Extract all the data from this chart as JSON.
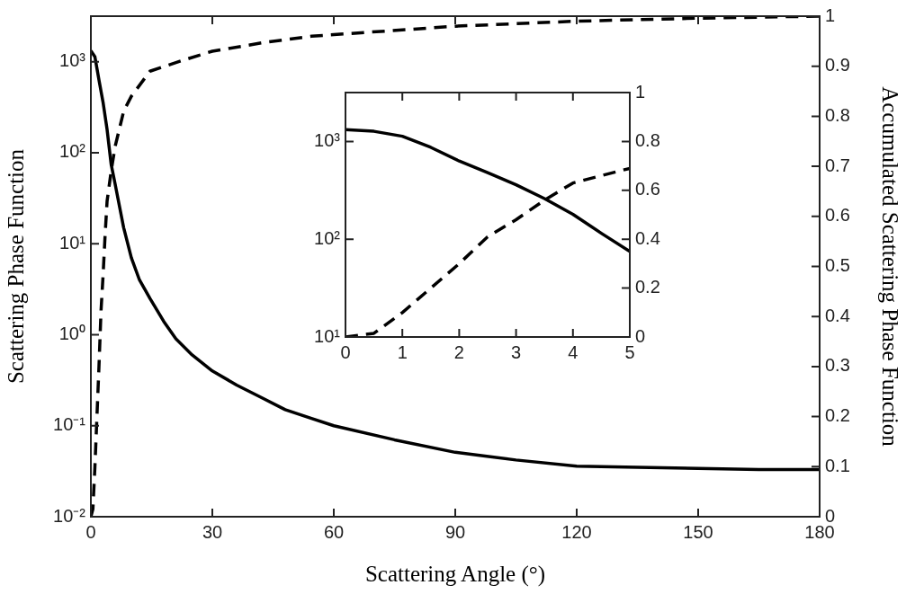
{
  "chart_data": [
    {
      "type": "line",
      "xlabel": "Scattering Angle (°)",
      "ylabel": "Scattering Phase Function",
      "y2label": "Accumulated Scattering Phase Function",
      "log": "y",
      "xlim": [
        0,
        180
      ],
      "xticks": [
        0,
        30,
        60,
        90,
        120,
        150,
        180
      ],
      "ylim": [
        0.01,
        3162
      ],
      "yticks": [
        {
          "value": 0.01,
          "label": "10⁻²"
        },
        {
          "value": 0.1,
          "label": "10⁻¹"
        },
        {
          "value": 1,
          "label": "10⁰"
        },
        {
          "value": 10,
          "label": "10¹"
        },
        {
          "value": 100,
          "label": "10²"
        },
        {
          "value": 1000,
          "label": "10³"
        }
      ],
      "y2lim": [
        0,
        1
      ],
      "y2ticks": [
        0,
        0.1,
        0.2,
        0.3,
        0.4,
        0.5,
        0.6,
        0.7,
        0.8,
        0.9,
        1
      ],
      "grid": false,
      "legend": false,
      "marker": "none",
      "series": [
        {
          "color": "#000000",
          "line_style": "solid",
          "axis": "y",
          "x": [
            0,
            1,
            2,
            3,
            4,
            5,
            6,
            8.1,
            10,
            12,
            14.6,
            18,
            21,
            25,
            30,
            36,
            42.5,
            48,
            54.5,
            60,
            75,
            90,
            105,
            120,
            135,
            150,
            165,
            180
          ],
          "values": [
            1320,
            1130,
            630,
            360,
            180,
            75,
            45,
            15,
            7,
            4,
            2.5,
            1.4,
            0.9,
            0.6,
            0.4,
            0.28,
            0.2,
            0.15,
            0.12,
            0.1,
            0.07,
            0.051,
            0.042,
            0.036,
            0.035,
            0.034,
            0.033,
            0.033
          ]
        },
        {
          "color": "#000000",
          "line_style": "dashed",
          "axis": "y2",
          "x": [
            0,
            0.5,
            1,
            1.5,
            2,
            2.5,
            3,
            3.5,
            4,
            4.5,
            5,
            6,
            8.1,
            10,
            14.6,
            22,
            30,
            42.5,
            54.5,
            60,
            90,
            120,
            150,
            180
          ],
          "values": [
            0,
            0.015,
            0.1,
            0.2,
            0.3,
            0.41,
            0.48,
            0.56,
            0.63,
            0.66,
            0.69,
            0.74,
            0.81,
            0.84,
            0.89,
            0.91,
            0.93,
            0.947,
            0.96,
            0.963,
            0.98,
            0.99,
            0.996,
            1
          ]
        }
      ]
    },
    {
      "type": "line",
      "log": "y",
      "xlim": [
        0,
        5
      ],
      "xticks": [
        0,
        1,
        2,
        3,
        4,
        5
      ],
      "ylim": [
        10,
        3162
      ],
      "yticks": [
        {
          "value": 10,
          "label": "10¹"
        },
        {
          "value": 100,
          "label": "10²"
        },
        {
          "value": 1000,
          "label": "10³"
        }
      ],
      "y2lim": [
        0,
        1
      ],
      "y2ticks": [
        0,
        0.2,
        0.4,
        0.6,
        0.8,
        1
      ],
      "grid": false,
      "legend": false,
      "marker": "none",
      "series": [
        {
          "color": "#000000",
          "line_style": "solid",
          "axis": "y",
          "x": [
            0,
            0.5,
            1,
            1.5,
            2,
            2.5,
            3,
            3.5,
            4,
            4.5,
            5
          ],
          "values": [
            1320,
            1270,
            1130,
            870,
            630,
            480,
            360,
            260,
            180,
            115,
            75
          ]
        },
        {
          "color": "#000000",
          "line_style": "dashed",
          "axis": "y2",
          "x": [
            0,
            0.5,
            1,
            1.5,
            2,
            2.5,
            3,
            3.5,
            4,
            4.5,
            5
          ],
          "values": [
            0,
            0.015,
            0.1,
            0.2,
            0.3,
            0.41,
            0.48,
            0.56,
            0.63,
            0.66,
            0.69
          ]
        }
      ]
    }
  ]
}
